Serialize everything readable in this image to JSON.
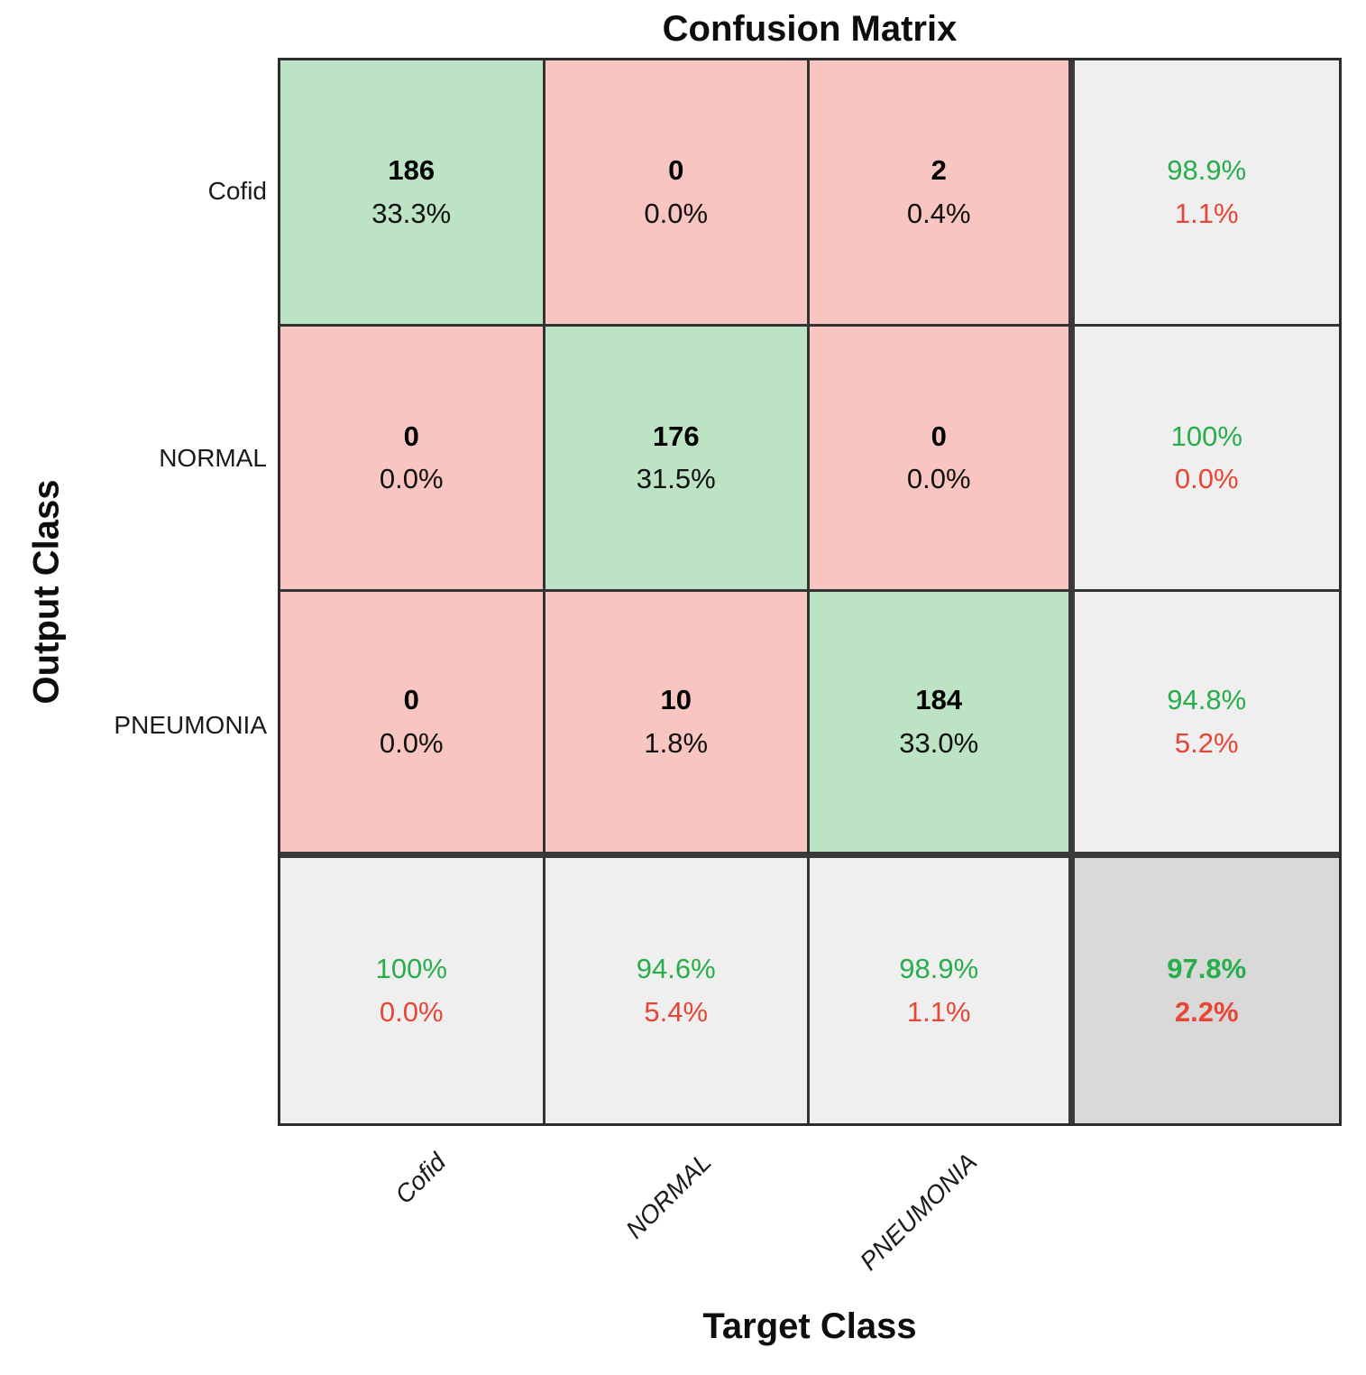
{
  "title": "Confusion Matrix",
  "axes": {
    "y_label": "Output Class",
    "x_label": "Target Class"
  },
  "classes": [
    "Cofid",
    "NORMAL",
    "PNEUMONIA"
  ],
  "grid": [
    [
      {
        "count": "186",
        "pct": "33.3%"
      },
      {
        "count": "0",
        "pct": "0.0%"
      },
      {
        "count": "2",
        "pct": "0.4%"
      },
      {
        "green": "98.9%",
        "red": "1.1%"
      }
    ],
    [
      {
        "count": "0",
        "pct": "0.0%"
      },
      {
        "count": "176",
        "pct": "31.5%"
      },
      {
        "count": "0",
        "pct": "0.0%"
      },
      {
        "green": "100%",
        "red": "0.0%"
      }
    ],
    [
      {
        "count": "0",
        "pct": "0.0%"
      },
      {
        "count": "10",
        "pct": "1.8%"
      },
      {
        "count": "184",
        "pct": "33.0%"
      },
      {
        "green": "94.8%",
        "red": "5.2%"
      }
    ],
    [
      {
        "green": "100%",
        "red": "0.0%"
      },
      {
        "green": "94.6%",
        "red": "5.4%"
      },
      {
        "green": "98.9%",
        "red": "1.1%"
      },
      {
        "green": "97.8%",
        "red": "2.2%"
      }
    ]
  ],
  "colors": {
    "diagonal_cell": "#bce4c4",
    "offdiagonal_cell": "#f8c5c0",
    "summary_cell": "#efefef",
    "total_cell": "#d9d9d9",
    "green_text": "#27ae4b",
    "red_text": "#e74535",
    "grid_line": "#333333"
  },
  "chart_data": {
    "type": "heatmap",
    "title": "Confusion Matrix",
    "xlabel": "Target Class",
    "ylabel": "Output Class",
    "classes": [
      "Cofid",
      "NORMAL",
      "PNEUMONIA"
    ],
    "matrix_counts": [
      [
        186,
        0,
        2
      ],
      [
        0,
        176,
        0
      ],
      [
        0,
        10,
        184
      ]
    ],
    "matrix_percent_of_total": [
      [
        "33.3%",
        "0.0%",
        "0.4%"
      ],
      [
        "0.0%",
        "31.5%",
        "0.0%"
      ],
      [
        "0.0%",
        "1.8%",
        "33.0%"
      ]
    ],
    "row_summary_precision": [
      {
        "correct": "98.9%",
        "incorrect": "1.1%"
      },
      {
        "correct": "100%",
        "incorrect": "0.0%"
      },
      {
        "correct": "94.8%",
        "incorrect": "5.2%"
      }
    ],
    "column_summary_recall": [
      {
        "correct": "100%",
        "incorrect": "0.0%"
      },
      {
        "correct": "94.6%",
        "incorrect": "5.4%"
      },
      {
        "correct": "98.9%",
        "incorrect": "1.1%"
      }
    ],
    "overall_accuracy": {
      "correct": "97.8%",
      "incorrect": "2.2%"
    },
    "legend_position": "none",
    "grid": "on"
  }
}
